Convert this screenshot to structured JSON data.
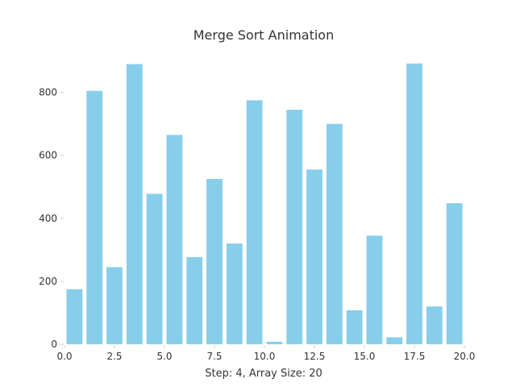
{
  "chart_data": {
    "type": "bar",
    "title": "Merge Sort Animation",
    "xlabel": "Step: 4, Array Size: 20",
    "ylabel": "",
    "x": [
      1,
      2,
      3,
      4,
      5,
      6,
      7,
      8,
      9,
      10,
      11,
      12,
      13,
      14,
      15,
      16,
      17,
      18,
      19,
      20
    ],
    "values": [
      175,
      805,
      245,
      890,
      478,
      665,
      277,
      525,
      320,
      775,
      8,
      745,
      555,
      700,
      108,
      345,
      22,
      892,
      120,
      448
    ],
    "xlim": [
      0.0,
      20.0
    ],
    "ylim": [
      0,
      940
    ],
    "xticks": [
      "0.0",
      "2.5",
      "5.0",
      "7.5",
      "10.0",
      "12.5",
      "15.0",
      "17.5",
      "20.0"
    ],
    "yticks": [
      "0",
      "200",
      "400",
      "600",
      "800"
    ],
    "bar_color": "#87ceeb",
    "grid": false,
    "legend": "none"
  }
}
